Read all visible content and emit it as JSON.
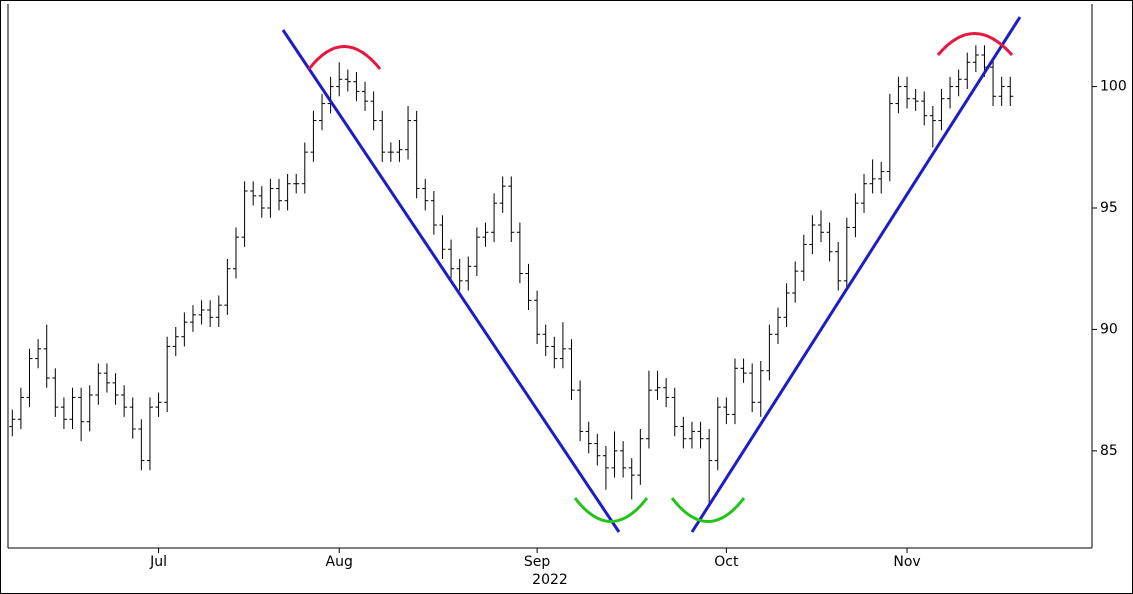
{
  "chart_data": {
    "type": "ohlc",
    "x_label": "2022",
    "color": "#000000",
    "ylim": [
      81,
      103.4
    ],
    "yticks": [
      85,
      90,
      95,
      100
    ],
    "categories": [
      null,
      null,
      null,
      null,
      null,
      null,
      null,
      null,
      null,
      null,
      null,
      null,
      null,
      null,
      null,
      null,
      null,
      "Jul",
      null,
      null,
      null,
      null,
      null,
      null,
      null,
      null,
      null,
      null,
      null,
      null,
      null,
      null,
      null,
      null,
      null,
      null,
      null,
      null,
      "Aug",
      null,
      null,
      null,
      null,
      null,
      null,
      null,
      null,
      null,
      null,
      null,
      null,
      null,
      null,
      null,
      null,
      null,
      null,
      null,
      null,
      null,
      null,
      "Sep",
      null,
      null,
      null,
      null,
      null,
      null,
      null,
      null,
      null,
      null,
      null,
      null,
      null,
      null,
      null,
      null,
      null,
      null,
      null,
      null,
      null,
      "Oct",
      null,
      null,
      null,
      null,
      null,
      null,
      null,
      null,
      null,
      null,
      null,
      null,
      null,
      null,
      null,
      null,
      null,
      null,
      null,
      null,
      "Nov",
      null,
      null,
      null,
      null,
      null,
      null,
      null,
      null,
      null,
      null,
      null,
      null,
      null,
      null,
      null,
      null,
      null,
      null,
      null,
      null,
      null
    ],
    "open": [
      86.0,
      86.3,
      87.2,
      88.8,
      89.2,
      88.0,
      86.8,
      86.3,
      87.2,
      86.2,
      87.3,
      88.2,
      87.8,
      87.3,
      86.8,
      85.9,
      84.6,
      86.8,
      87.0,
      89.3,
      89.7,
      90.3,
      90.6,
      90.8,
      90.5,
      91.0,
      92.5,
      93.8,
      95.7,
      95.5,
      95.0,
      95.8,
      95.3,
      96.0,
      96.0,
      97.3,
      98.6,
      99.3,
      100.0,
      100.3,
      100.2,
      99.8,
      99.4,
      98.6,
      97.3,
      97.3,
      97.4,
      98.6,
      95.8,
      95.3,
      94.3,
      93.3,
      92.5,
      92.0,
      92.6,
      93.8,
      94.0,
      95.2,
      95.9,
      94.0,
      92.3,
      91.2,
      89.8,
      89.3,
      88.8,
      89.2,
      87.5,
      85.8,
      85.3,
      84.8,
      84.3,
      85.0,
      84.3,
      84.0,
      85.5,
      87.5,
      87.6,
      87.2,
      86.0,
      85.5,
      85.8,
      85.5,
      84.6,
      86.8,
      86.5,
      88.4,
      88.2,
      87.0,
      88.3,
      89.8,
      90.5,
      91.5,
      92.4,
      93.5,
      94.3,
      94.0,
      93.2,
      92.0,
      94.2,
      95.2,
      96.0,
      96.2,
      96.5,
      99.3,
      100.0,
      99.5,
      99.4,
      98.8,
      98.6,
      99.5,
      100.0,
      100.3,
      101.0,
      101.3,
      100.8,
      99.6,
      100.0,
      null,
      null,
      null,
      null,
      null,
      null,
      null,
      null,
      null
    ],
    "high": [
      86.7,
      87.6,
      89.2,
      89.6,
      90.2,
      88.4,
      87.2,
      87.6,
      87.6,
      87.7,
      88.6,
      88.6,
      88.2,
      87.7,
      87.2,
      86.3,
      87.2,
      87.4,
      89.7,
      90.1,
      90.7,
      91.0,
      91.2,
      91.2,
      91.4,
      92.9,
      94.2,
      96.1,
      96.1,
      95.9,
      96.2,
      96.2,
      96.4,
      96.4,
      97.7,
      99.0,
      99.7,
      100.4,
      101.0,
      100.7,
      100.6,
      100.2,
      99.8,
      99.0,
      97.7,
      97.8,
      99.2,
      99.0,
      96.2,
      95.7,
      94.7,
      93.7,
      92.9,
      93.0,
      94.2,
      94.4,
      95.6,
      96.3,
      96.3,
      94.4,
      92.7,
      91.6,
      90.2,
      89.7,
      90.3,
      89.6,
      87.9,
      86.2,
      85.7,
      85.2,
      85.8,
      85.4,
      84.7,
      85.9,
      88.3,
      88.3,
      88.0,
      87.6,
      86.4,
      86.2,
      86.2,
      85.9,
      87.2,
      87.2,
      88.8,
      88.8,
      88.6,
      88.7,
      90.2,
      90.9,
      91.9,
      92.8,
      93.9,
      94.7,
      94.9,
      94.4,
      93.6,
      94.6,
      95.6,
      96.4,
      97.0,
      96.9,
      99.7,
      100.4,
      100.4,
      99.9,
      99.8,
      99.2,
      99.9,
      100.4,
      100.7,
      101.4,
      101.7,
      101.7,
      101.2,
      100.4,
      100.4,
      null,
      null,
      null,
      null,
      null,
      null,
      null,
      null,
      null
    ],
    "low": [
      85.6,
      85.9,
      86.8,
      88.4,
      87.6,
      86.4,
      85.9,
      85.9,
      85.4,
      85.8,
      86.9,
      87.4,
      86.9,
      86.4,
      85.5,
      84.2,
      84.2,
      86.4,
      86.6,
      88.9,
      89.3,
      89.9,
      90.2,
      90.1,
      90.1,
      90.6,
      92.1,
      93.4,
      95.1,
      94.6,
      94.6,
      94.9,
      94.9,
      95.6,
      95.6,
      96.9,
      98.2,
      98.9,
      99.6,
      99.8,
      99.4,
      99.0,
      98.2,
      96.9,
      96.9,
      96.9,
      97.0,
      95.4,
      94.9,
      93.9,
      92.9,
      92.1,
      91.6,
      91.6,
      92.2,
      93.4,
      93.6,
      94.8,
      93.6,
      91.9,
      90.8,
      89.4,
      88.9,
      88.4,
      88.4,
      87.1,
      85.4,
      84.9,
      84.4,
      83.4,
      83.9,
      83.9,
      83.0,
      83.6,
      85.1,
      87.1,
      86.8,
      85.6,
      85.1,
      85.1,
      85.1,
      82.8,
      84.2,
      86.1,
      86.1,
      87.8,
      86.6,
      86.4,
      87.9,
      89.4,
      90.1,
      91.1,
      92.0,
      93.1,
      93.6,
      92.8,
      91.6,
      91.6,
      93.8,
      94.8,
      95.6,
      95.6,
      96.1,
      98.9,
      99.1,
      99.0,
      98.4,
      97.5,
      98.2,
      99.1,
      99.6,
      99.9,
      100.6,
      100.4,
      99.2,
      99.2,
      99.2,
      null,
      null,
      null,
      null,
      null,
      null,
      null,
      null,
      null
    ],
    "close": [
      86.3,
      87.2,
      88.8,
      89.2,
      88.0,
      86.8,
      86.3,
      87.2,
      86.2,
      87.3,
      88.2,
      87.8,
      87.3,
      86.8,
      85.9,
      84.6,
      86.8,
      87.0,
      89.3,
      89.7,
      90.3,
      90.6,
      90.8,
      90.5,
      91.0,
      92.5,
      93.8,
      95.7,
      95.5,
      95.0,
      95.8,
      95.3,
      96.0,
      96.0,
      97.3,
      98.6,
      99.3,
      100.0,
      100.3,
      100.2,
      99.8,
      99.4,
      98.6,
      97.3,
      97.3,
      97.4,
      98.6,
      95.8,
      95.3,
      94.3,
      93.3,
      92.5,
      92.0,
      92.6,
      93.8,
      94.0,
      95.2,
      95.9,
      94.0,
      92.3,
      91.2,
      89.8,
      89.3,
      88.8,
      89.2,
      87.5,
      85.8,
      85.3,
      84.8,
      84.3,
      85.0,
      84.3,
      84.0,
      85.5,
      87.5,
      87.6,
      87.2,
      86.0,
      85.5,
      85.8,
      85.5,
      84.6,
      86.8,
      86.5,
      88.4,
      88.2,
      87.0,
      88.3,
      89.8,
      90.5,
      91.5,
      92.4,
      93.5,
      94.3,
      94.0,
      93.2,
      92.0,
      94.2,
      95.2,
      96.0,
      96.2,
      96.5,
      99.3,
      100.0,
      99.5,
      99.4,
      98.8,
      98.6,
      99.5,
      100.0,
      100.3,
      101.0,
      101.3,
      100.8,
      99.6,
      100.0,
      99.6,
      null,
      null,
      null,
      null,
      null,
      null,
      null,
      null,
      null
    ]
  }
}
